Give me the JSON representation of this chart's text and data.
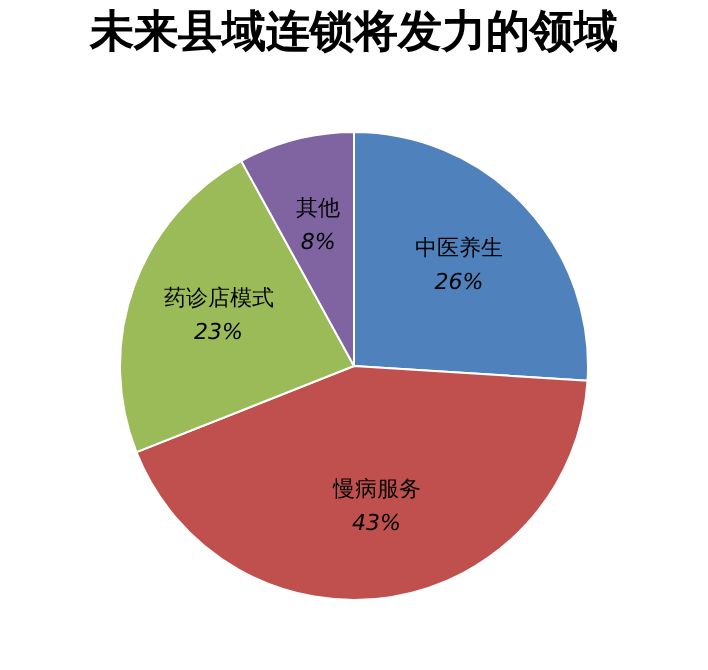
{
  "chart_data": {
    "type": "pie",
    "title": "未来县域连锁将发力的领域",
    "categories": [
      "中医养生",
      "慢病服务",
      "药诊店模式",
      "其他"
    ],
    "values": [
      26,
      43,
      23,
      8
    ],
    "colors": [
      "#4f81bd",
      "#c0504d",
      "#9bbb59",
      "#8064a2"
    ],
    "value_labels": [
      "26%",
      "43%",
      "23%",
      "8%"
    ],
    "legend": false
  }
}
